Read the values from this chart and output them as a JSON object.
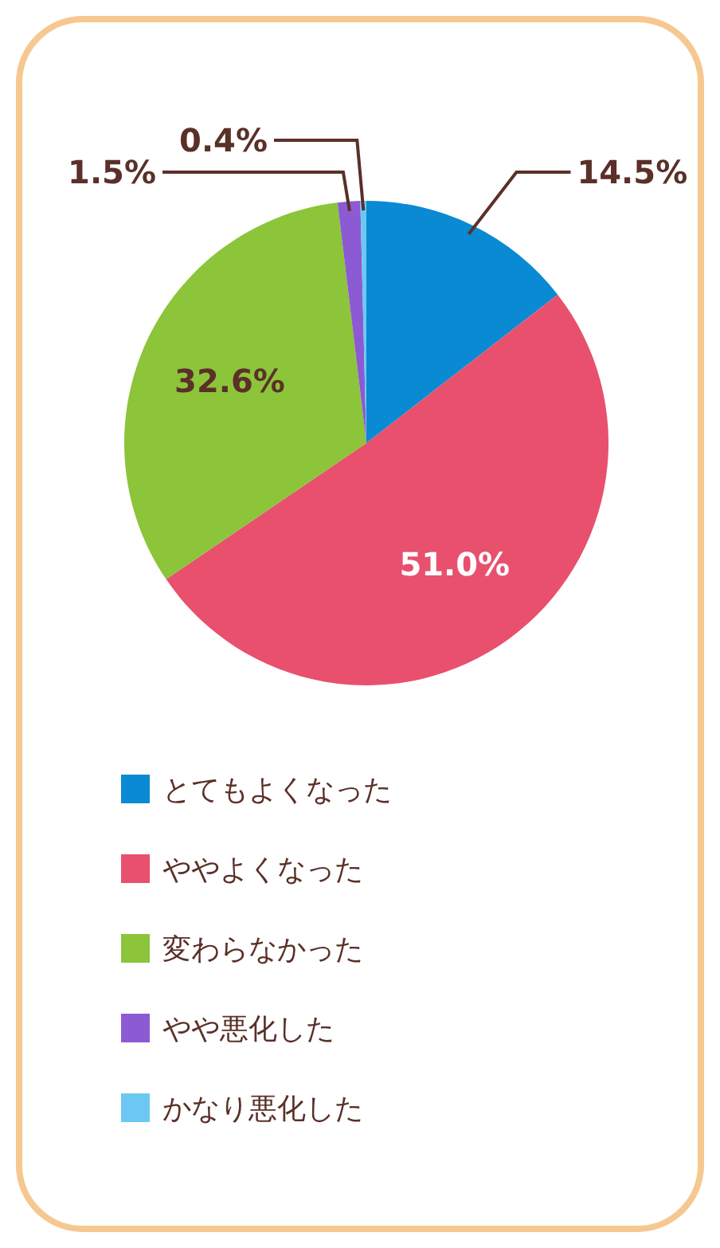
{
  "chart_data": {
    "type": "pie",
    "categories": [
      "とてもよくなった",
      "ややよくなった",
      "変わらなかった",
      "やや悪化した",
      "かなり悪化した"
    ],
    "values": [
      14.5,
      51.0,
      32.6,
      1.5,
      0.4
    ],
    "colors": [
      "#0a8ad2",
      "#e8506e",
      "#8cc43a",
      "#8c5ad2",
      "#6cc8f2"
    ],
    "value_labels": [
      "14.5%",
      "51.0%",
      "32.6%",
      "1.5%",
      "0.4%"
    ],
    "legend": "bottom"
  }
}
